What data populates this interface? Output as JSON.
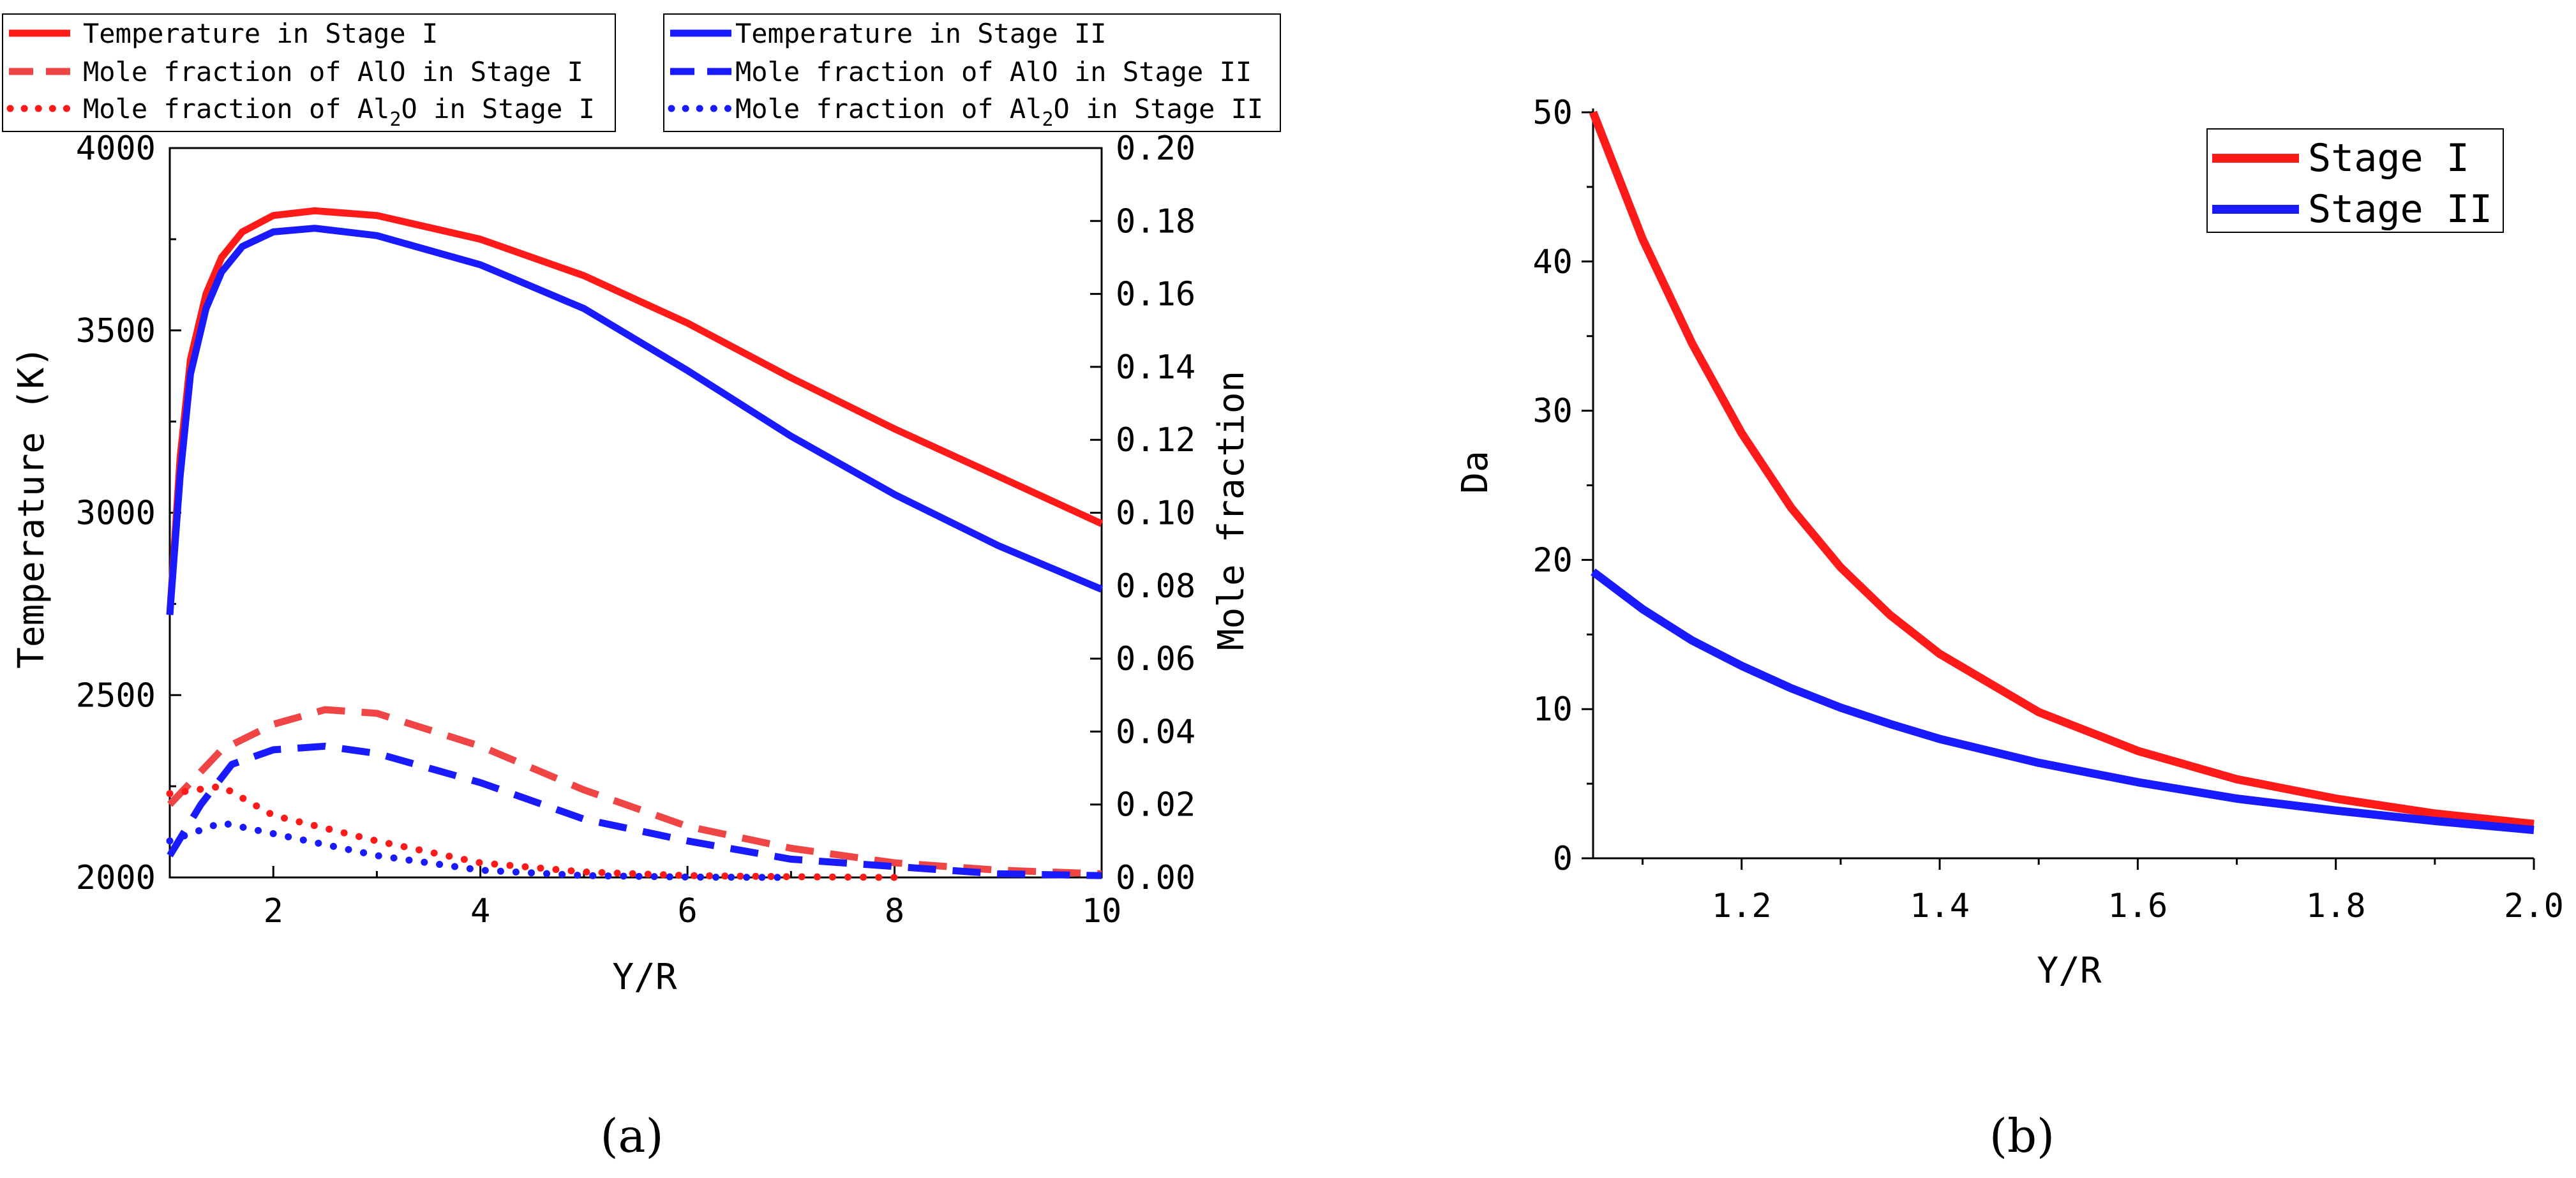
{
  "chart_data": [
    {
      "panel": "(a)",
      "type": "line",
      "xlabel": "Y/R",
      "ylabel": "Temperature (K)",
      "y2label": "Mole fraction",
      "xlim": [
        1,
        10
      ],
      "ylim": [
        2000,
        4000
      ],
      "y2lim": [
        0,
        0.2
      ],
      "x_ticks": [
        2,
        4,
        6,
        8,
        10
      ],
      "y_ticks": [
        2000,
        2500,
        3000,
        3500,
        4000
      ],
      "y2_ticks": [
        "0.00",
        "0.02",
        "0.04",
        "0.06",
        "0.08",
        "0.10",
        "0.12",
        "0.14",
        "0.16",
        "0.18",
        "0.20"
      ],
      "legend_left": [
        "Temperature in Stage I",
        "Mole fraction of AlO in Stage I",
        "Mole fraction of Al2O in Stage I"
      ],
      "legend_right": [
        "Temperature in Stage II",
        "Mole fraction of AlO in Stage II",
        "Mole fraction of Al2O in Stage II"
      ],
      "colors": {
        "stage1": "#ff1a1a",
        "stage1_light": "#f04545",
        "stage2": "#1a1aff"
      },
      "series": [
        {
          "name": "Temperature in Stage I",
          "axis": "left",
          "style": "solid",
          "color_key": "stage1",
          "x": [
            1.0,
            1.1,
            1.2,
            1.35,
            1.5,
            1.7,
            2.0,
            2.4,
            3.0,
            4.0,
            5.0,
            6.0,
            7.0,
            8.0,
            9.0,
            10.0
          ],
          "y": [
            2720,
            3150,
            3420,
            3600,
            3700,
            3770,
            3815,
            3828,
            3815,
            3750,
            3650,
            3520,
            3370,
            3230,
            3100,
            2970
          ]
        },
        {
          "name": "Temperature in Stage II",
          "axis": "left",
          "style": "solid",
          "color_key": "stage2",
          "x": [
            1.0,
            1.1,
            1.2,
            1.35,
            1.5,
            1.7,
            2.0,
            2.4,
            3.0,
            4.0,
            5.0,
            6.0,
            7.0,
            8.0,
            9.0,
            10.0
          ],
          "y": [
            2720,
            3100,
            3380,
            3560,
            3660,
            3730,
            3770,
            3780,
            3760,
            3680,
            3560,
            3390,
            3210,
            3050,
            2910,
            2790
          ]
        },
        {
          "name": "Mole fraction of AlO in Stage I",
          "axis": "right",
          "style": "dash",
          "color_key": "stage1_light",
          "x": [
            1.0,
            1.5,
            2.0,
            2.5,
            3.0,
            4.0,
            5.0,
            6.0,
            7.0,
            8.0,
            9.0,
            10.0
          ],
          "y": [
            0.02,
            0.035,
            0.042,
            0.046,
            0.045,
            0.036,
            0.024,
            0.014,
            0.008,
            0.004,
            0.002,
            0.001
          ]
        },
        {
          "name": "Mole fraction of AlO in Stage II",
          "axis": "right",
          "style": "dash",
          "color_key": "stage2",
          "x": [
            1.0,
            1.3,
            1.6,
            2.0,
            2.5,
            3.0,
            4.0,
            5.0,
            6.0,
            7.0,
            8.0,
            9.0,
            10.0
          ],
          "y": [
            0.006,
            0.02,
            0.031,
            0.035,
            0.036,
            0.034,
            0.026,
            0.016,
            0.01,
            0.005,
            0.003,
            0.001,
            0.0005
          ]
        },
        {
          "name": "Mole fraction of Al2O in Stage I",
          "axis": "right",
          "style": "dot",
          "color_key": "stage1",
          "x": [
            1.0,
            1.5,
            2.0,
            3.0,
            4.0,
            5.0,
            6.0,
            7.0,
            8.0
          ],
          "y": [
            0.023,
            0.025,
            0.017,
            0.01,
            0.004,
            0.0015,
            0.0005,
            0.0002,
            0.0
          ]
        },
        {
          "name": "Mole fraction of Al2O in Stage II",
          "axis": "right",
          "style": "dot",
          "color_key": "stage2",
          "x": [
            1.0,
            1.5,
            2.0,
            3.0,
            4.0,
            5.0,
            6.0,
            7.0
          ],
          "y": [
            0.01,
            0.015,
            0.012,
            0.006,
            0.002,
            0.0005,
            0.0001,
            0.0
          ]
        }
      ]
    },
    {
      "panel": "(b)",
      "type": "line",
      "xlabel": "Y/R",
      "ylabel": "Da",
      "xlim": [
        1.05,
        2.0
      ],
      "ylim": [
        0,
        50
      ],
      "x_ticks": [
        "1.2",
        "1.4",
        "1.6",
        "1.8",
        "2.0"
      ],
      "y_ticks": [
        0,
        10,
        20,
        30,
        40,
        50
      ],
      "legend": [
        "Stage I",
        "Stage II"
      ],
      "colors": {
        "stage1": "#ff1a1a",
        "stage2": "#1a1aff"
      },
      "series": [
        {
          "name": "Stage I",
          "color_key": "stage1",
          "x": [
            1.05,
            1.1,
            1.15,
            1.2,
            1.25,
            1.3,
            1.35,
            1.4,
            1.5,
            1.6,
            1.7,
            1.8,
            1.9,
            2.0
          ],
          "y": [
            50,
            41.5,
            34.5,
            28.5,
            23.5,
            19.5,
            16.3,
            13.7,
            9.8,
            7.2,
            5.3,
            4.0,
            3.0,
            2.3
          ]
        },
        {
          "name": "Stage II",
          "color_key": "stage2",
          "x": [
            1.05,
            1.1,
            1.15,
            1.2,
            1.25,
            1.3,
            1.35,
            1.4,
            1.5,
            1.6,
            1.7,
            1.8,
            1.9,
            2.0
          ],
          "y": [
            19.2,
            16.7,
            14.6,
            12.9,
            11.4,
            10.1,
            9.0,
            8.0,
            6.4,
            5.1,
            4.0,
            3.2,
            2.5,
            1.9
          ]
        }
      ]
    }
  ]
}
